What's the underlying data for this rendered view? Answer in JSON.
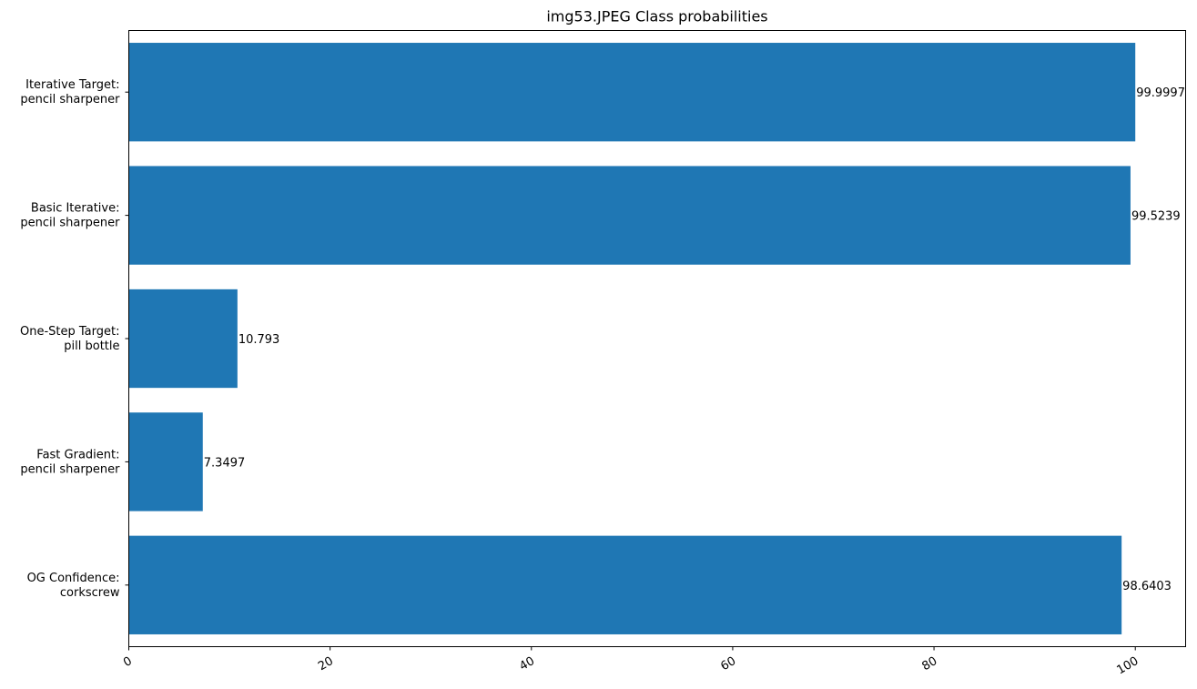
{
  "chart_data": {
    "type": "bar",
    "orientation": "horizontal",
    "title": "img53.JPEG Class probabilities",
    "xlabel": "",
    "ylabel": "",
    "categories": [
      [
        "OG Confidence:",
        "corkscrew"
      ],
      [
        "Fast Gradient:",
        "pencil sharpener"
      ],
      [
        "One-Step Target:",
        "pill bottle"
      ],
      [
        "Basic Iterative:",
        "pencil sharpener"
      ],
      [
        "Iterative Target:",
        "pencil sharpener"
      ]
    ],
    "values": [
      98.6403,
      7.3497,
      10.793,
      99.5239,
      99.9997
    ],
    "data_labels": [
      "98.6403",
      "7.3497",
      "10.793",
      "99.5239",
      "99.9997"
    ],
    "xlim": [
      0,
      105
    ],
    "xticks": [
      0,
      20,
      40,
      60,
      80,
      100
    ],
    "xtick_labels": [
      "0",
      "20",
      "40",
      "60",
      "80",
      "100"
    ],
    "xtick_rotation_deg": 30,
    "grid": false,
    "legend": "none",
    "bar_color": "#1f77b4"
  }
}
